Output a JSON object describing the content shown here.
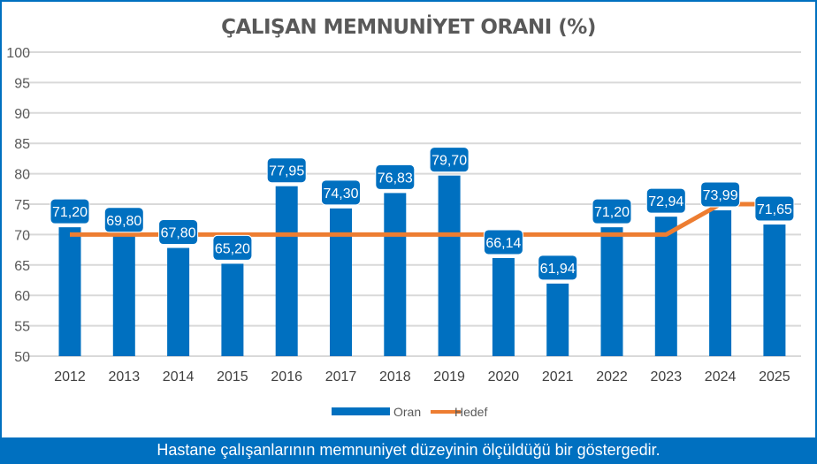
{
  "chart_data": {
    "type": "bar",
    "title": "ÇALIŞAN MEMNUNİYET ORANI (%)",
    "categories": [
      "2012",
      "2013",
      "2014",
      "2015",
      "2016",
      "2017",
      "2018",
      "2019",
      "2020",
      "2021",
      "2022",
      "2023",
      "2024",
      "2025"
    ],
    "series": [
      {
        "name": "Oran",
        "type": "bar",
        "color": "#0070C0",
        "values": [
          71.2,
          69.8,
          67.8,
          65.2,
          77.95,
          74.3,
          76.83,
          79.7,
          66.14,
          61.94,
          71.2,
          72.94,
          73.99,
          71.65
        ],
        "labels": [
          "71,20",
          "69,80",
          "67,80",
          "65,20",
          "77,95",
          "74,30",
          "76,83",
          "79,70",
          "66,14",
          "61,94",
          "71,20",
          "72,94",
          "73,99",
          "71,65"
        ]
      },
      {
        "name": "Hedef",
        "type": "line",
        "color": "#ED7D31",
        "values": [
          70,
          70,
          70,
          70,
          70,
          70,
          70,
          70,
          70,
          70,
          70,
          70,
          75,
          75
        ]
      }
    ],
    "ylim": [
      50,
      100
    ],
    "yticks": [
      "50",
      "55",
      "60",
      "65",
      "70",
      "75",
      "80",
      "85",
      "90",
      "95",
      "100"
    ],
    "grid": true,
    "legend": "bottom"
  },
  "footer": "Hastane çalışanlarının memnuniyet düzeyinin ölçüldüğü bir göstergedir."
}
